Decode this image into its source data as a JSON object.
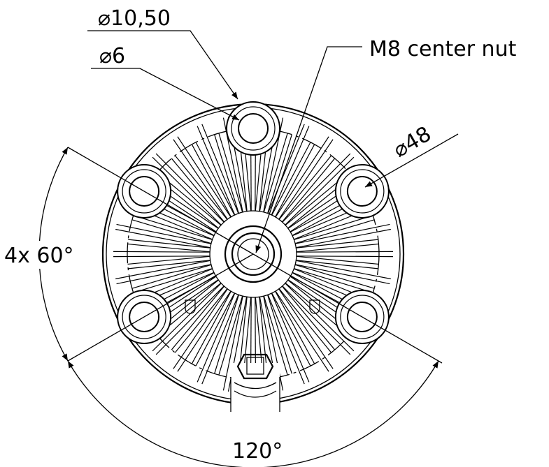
{
  "dimensions": {
    "outer_hole_diameter": "⌀10,50",
    "inner_hole_diameter": "⌀6",
    "center_nut": "M8 center nut",
    "bolt_circle_diameter": "⌀48",
    "hole_spacing_angle": "4x 60°",
    "wide_angle": "120°"
  }
}
